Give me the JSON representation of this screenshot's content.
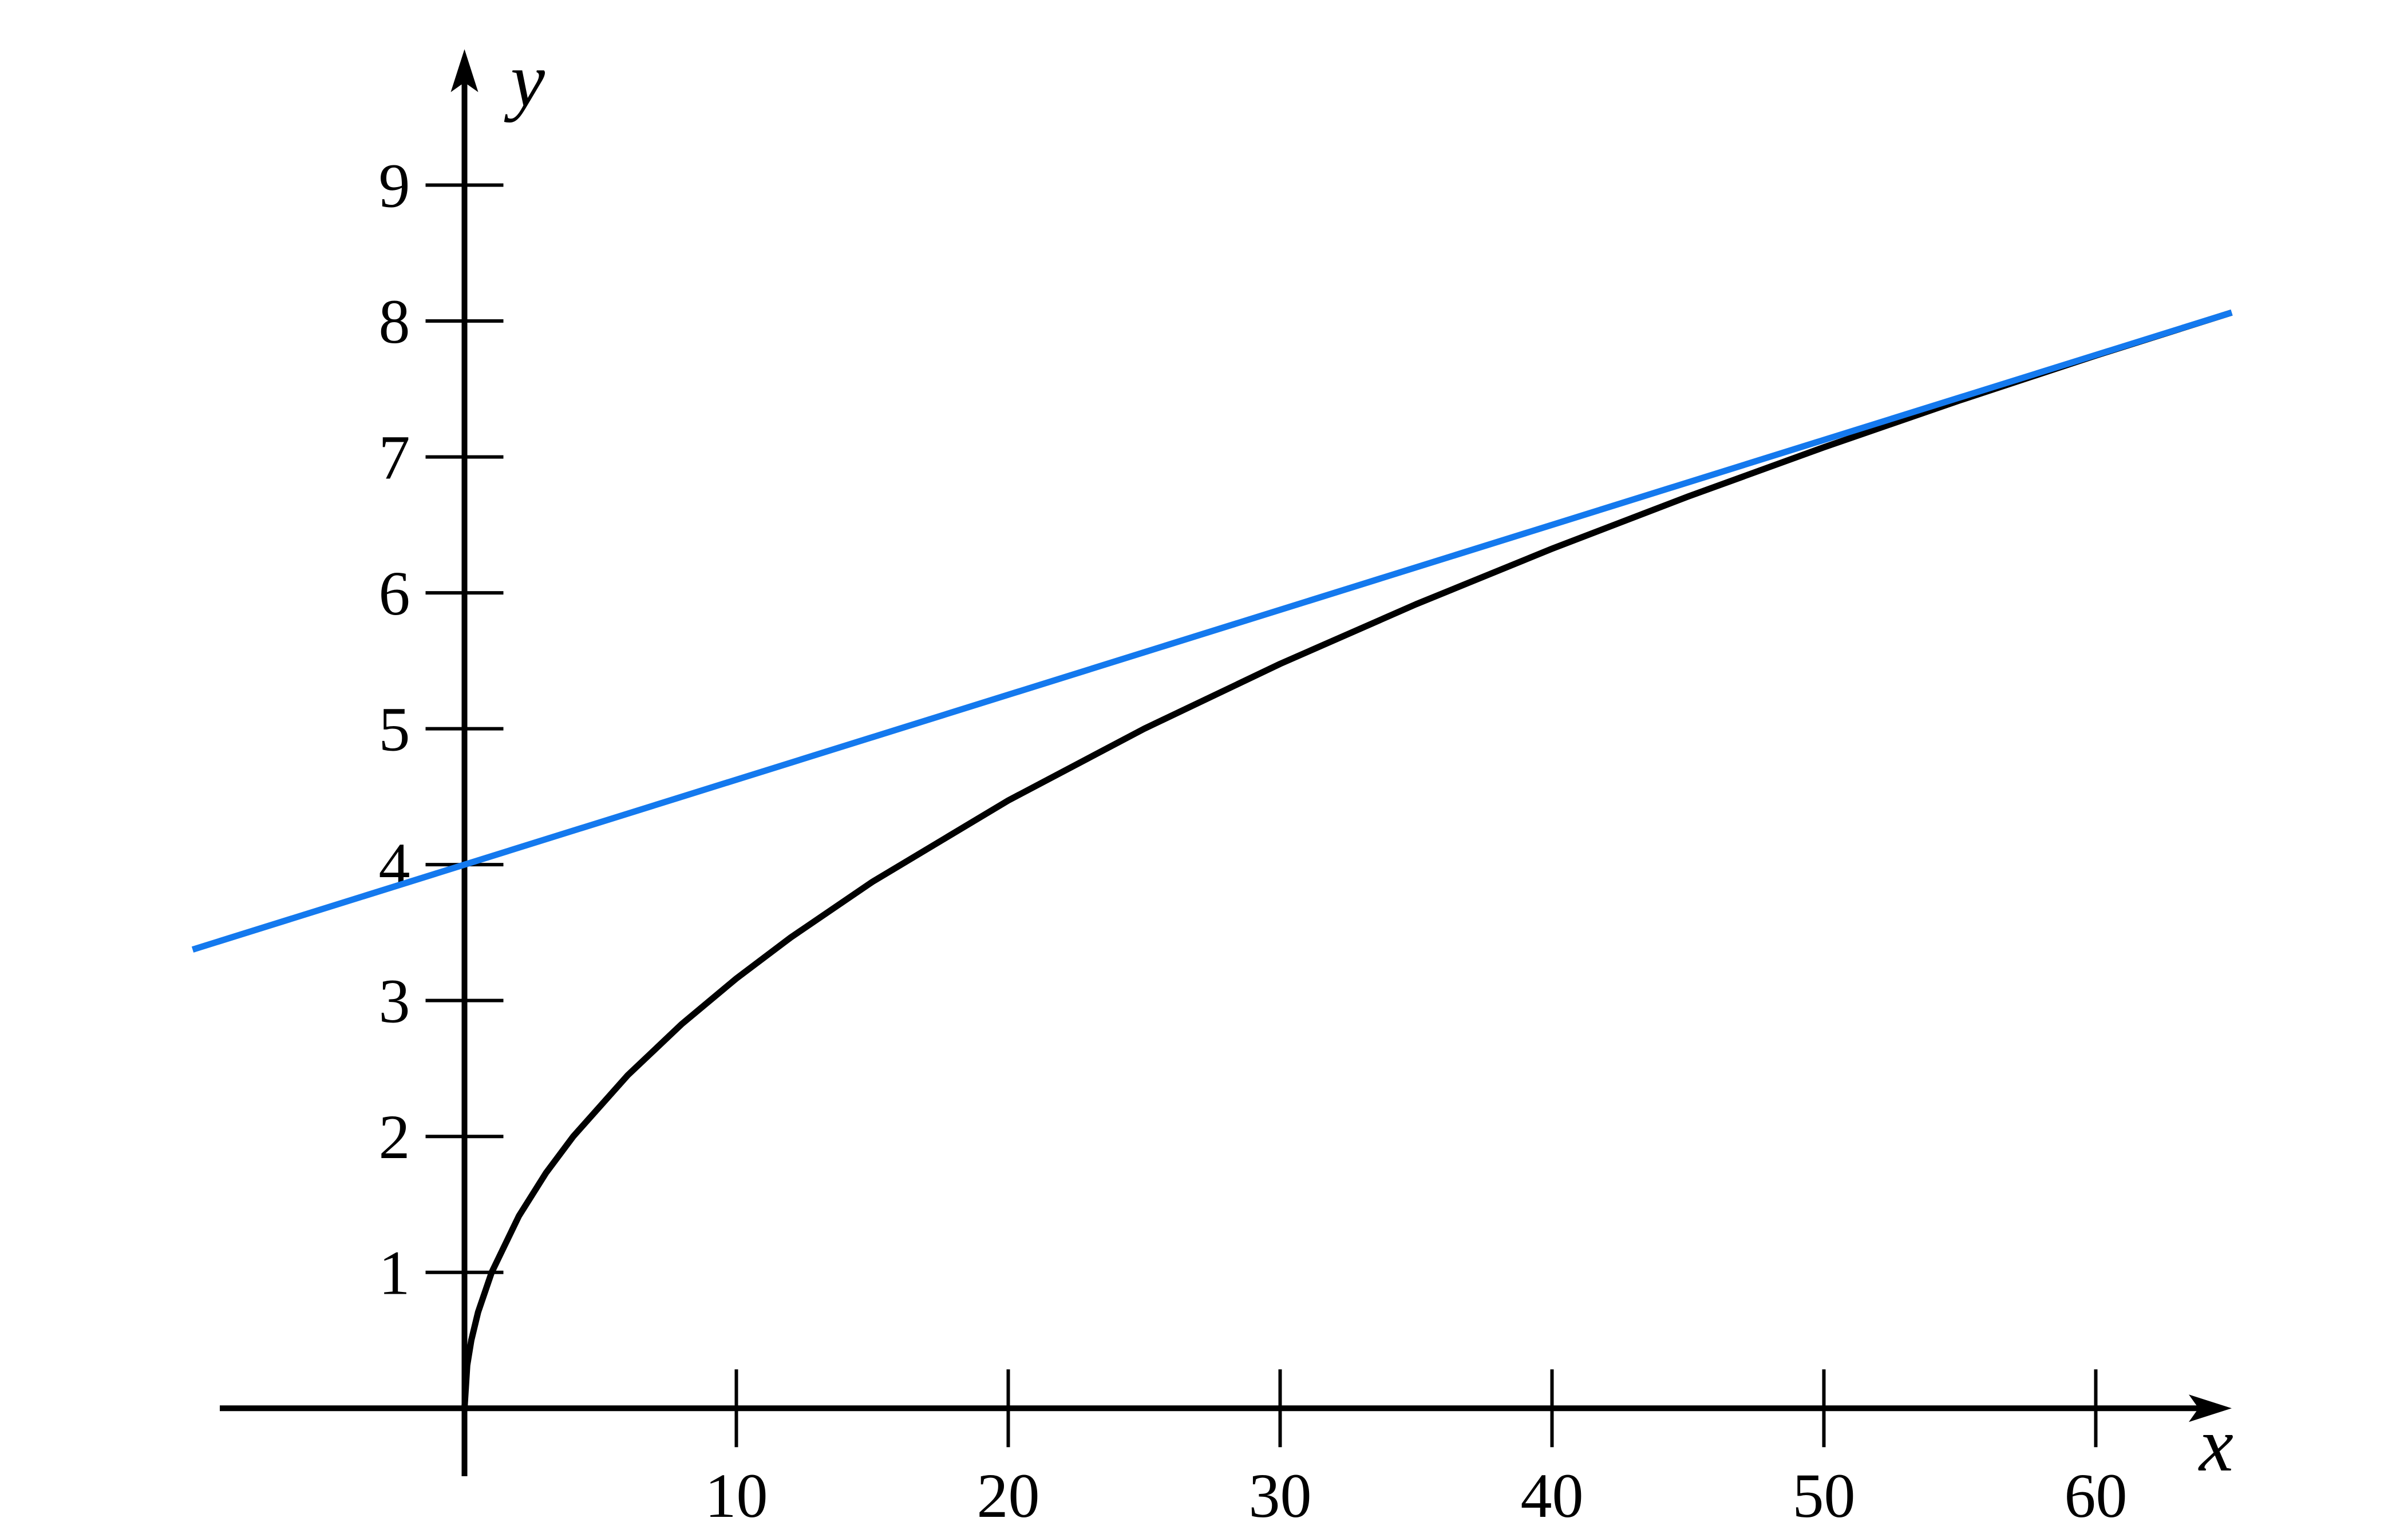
{
  "chart_data": {
    "type": "line",
    "xlabel": "x",
    "ylabel": "y",
    "xlim": [
      -9,
      65
    ],
    "ylim": [
      -0.5,
      10
    ],
    "xticks": [
      10,
      20,
      30,
      40,
      50,
      60
    ],
    "yticks": [
      1,
      2,
      3,
      4,
      5,
      6,
      7,
      8,
      9
    ],
    "series": [
      {
        "color": "#000000",
        "x": [
          0,
          0.1,
          0.25,
          0.5,
          1,
          2,
          3,
          4,
          6,
          8,
          10,
          12,
          15,
          20,
          25,
          30,
          35,
          40,
          45,
          50,
          55,
          60,
          65
        ],
        "values": [
          0,
          0.3162,
          0.5,
          0.7071,
          1,
          1.4142,
          1.7321,
          2,
          2.4495,
          2.8284,
          3.1623,
          3.4641,
          3.873,
          4.4721,
          5,
          5.4772,
          5.9161,
          6.3246,
          6.7082,
          7.0711,
          7.4162,
          7.746,
          8.0623
        ]
      },
      {
        "color": "#1479ee",
        "x": [
          -10,
          65
        ],
        "values": [
          3.375,
          8.0625
        ]
      }
    ]
  }
}
